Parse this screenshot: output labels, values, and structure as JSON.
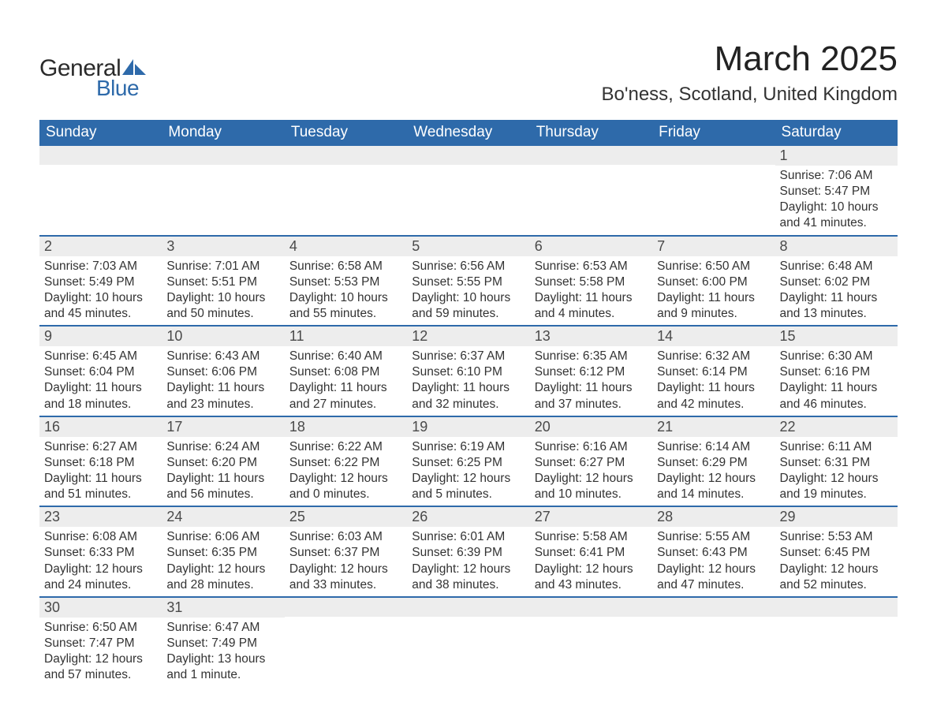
{
  "brand": {
    "word1": "General",
    "word2": "Blue",
    "accent_color": "#2e6aaa"
  },
  "title": "March 2025",
  "location": "Bo'ness, Scotland, United Kingdom",
  "day_headers": [
    "Sunday",
    "Monday",
    "Tuesday",
    "Wednesday",
    "Thursday",
    "Friday",
    "Saturday"
  ],
  "colors": {
    "header_bg": "#2e6aaa",
    "header_text": "#ffffff",
    "daynum_bg": "#ededed",
    "text": "#333333",
    "rule": "#2e6aaa"
  },
  "fonts": {
    "title_size_pt": 33,
    "location_size_pt": 18,
    "dow_size_pt": 14,
    "daynum_size_pt": 14,
    "body_size_pt": 12
  },
  "weeks": [
    [
      {
        "n": "",
        "sunrise": "",
        "sunset": "",
        "daylight": ""
      },
      {
        "n": "",
        "sunrise": "",
        "sunset": "",
        "daylight": ""
      },
      {
        "n": "",
        "sunrise": "",
        "sunset": "",
        "daylight": ""
      },
      {
        "n": "",
        "sunrise": "",
        "sunset": "",
        "daylight": ""
      },
      {
        "n": "",
        "sunrise": "",
        "sunset": "",
        "daylight": ""
      },
      {
        "n": "",
        "sunrise": "",
        "sunset": "",
        "daylight": ""
      },
      {
        "n": "1",
        "sunrise": "Sunrise: 7:06 AM",
        "sunset": "Sunset: 5:47 PM",
        "daylight": "Daylight: 10 hours and 41 minutes."
      }
    ],
    [
      {
        "n": "2",
        "sunrise": "Sunrise: 7:03 AM",
        "sunset": "Sunset: 5:49 PM",
        "daylight": "Daylight: 10 hours and 45 minutes."
      },
      {
        "n": "3",
        "sunrise": "Sunrise: 7:01 AM",
        "sunset": "Sunset: 5:51 PM",
        "daylight": "Daylight: 10 hours and 50 minutes."
      },
      {
        "n": "4",
        "sunrise": "Sunrise: 6:58 AM",
        "sunset": "Sunset: 5:53 PM",
        "daylight": "Daylight: 10 hours and 55 minutes."
      },
      {
        "n": "5",
        "sunrise": "Sunrise: 6:56 AM",
        "sunset": "Sunset: 5:55 PM",
        "daylight": "Daylight: 10 hours and 59 minutes."
      },
      {
        "n": "6",
        "sunrise": "Sunrise: 6:53 AM",
        "sunset": "Sunset: 5:58 PM",
        "daylight": "Daylight: 11 hours and 4 minutes."
      },
      {
        "n": "7",
        "sunrise": "Sunrise: 6:50 AM",
        "sunset": "Sunset: 6:00 PM",
        "daylight": "Daylight: 11 hours and 9 minutes."
      },
      {
        "n": "8",
        "sunrise": "Sunrise: 6:48 AM",
        "sunset": "Sunset: 6:02 PM",
        "daylight": "Daylight: 11 hours and 13 minutes."
      }
    ],
    [
      {
        "n": "9",
        "sunrise": "Sunrise: 6:45 AM",
        "sunset": "Sunset: 6:04 PM",
        "daylight": "Daylight: 11 hours and 18 minutes."
      },
      {
        "n": "10",
        "sunrise": "Sunrise: 6:43 AM",
        "sunset": "Sunset: 6:06 PM",
        "daylight": "Daylight: 11 hours and 23 minutes."
      },
      {
        "n": "11",
        "sunrise": "Sunrise: 6:40 AM",
        "sunset": "Sunset: 6:08 PM",
        "daylight": "Daylight: 11 hours and 27 minutes."
      },
      {
        "n": "12",
        "sunrise": "Sunrise: 6:37 AM",
        "sunset": "Sunset: 6:10 PM",
        "daylight": "Daylight: 11 hours and 32 minutes."
      },
      {
        "n": "13",
        "sunrise": "Sunrise: 6:35 AM",
        "sunset": "Sunset: 6:12 PM",
        "daylight": "Daylight: 11 hours and 37 minutes."
      },
      {
        "n": "14",
        "sunrise": "Sunrise: 6:32 AM",
        "sunset": "Sunset: 6:14 PM",
        "daylight": "Daylight: 11 hours and 42 minutes."
      },
      {
        "n": "15",
        "sunrise": "Sunrise: 6:30 AM",
        "sunset": "Sunset: 6:16 PM",
        "daylight": "Daylight: 11 hours and 46 minutes."
      }
    ],
    [
      {
        "n": "16",
        "sunrise": "Sunrise: 6:27 AM",
        "sunset": "Sunset: 6:18 PM",
        "daylight": "Daylight: 11 hours and 51 minutes."
      },
      {
        "n": "17",
        "sunrise": "Sunrise: 6:24 AM",
        "sunset": "Sunset: 6:20 PM",
        "daylight": "Daylight: 11 hours and 56 minutes."
      },
      {
        "n": "18",
        "sunrise": "Sunrise: 6:22 AM",
        "sunset": "Sunset: 6:22 PM",
        "daylight": "Daylight: 12 hours and 0 minutes."
      },
      {
        "n": "19",
        "sunrise": "Sunrise: 6:19 AM",
        "sunset": "Sunset: 6:25 PM",
        "daylight": "Daylight: 12 hours and 5 minutes."
      },
      {
        "n": "20",
        "sunrise": "Sunrise: 6:16 AM",
        "sunset": "Sunset: 6:27 PM",
        "daylight": "Daylight: 12 hours and 10 minutes."
      },
      {
        "n": "21",
        "sunrise": "Sunrise: 6:14 AM",
        "sunset": "Sunset: 6:29 PM",
        "daylight": "Daylight: 12 hours and 14 minutes."
      },
      {
        "n": "22",
        "sunrise": "Sunrise: 6:11 AM",
        "sunset": "Sunset: 6:31 PM",
        "daylight": "Daylight: 12 hours and 19 minutes."
      }
    ],
    [
      {
        "n": "23",
        "sunrise": "Sunrise: 6:08 AM",
        "sunset": "Sunset: 6:33 PM",
        "daylight": "Daylight: 12 hours and 24 minutes."
      },
      {
        "n": "24",
        "sunrise": "Sunrise: 6:06 AM",
        "sunset": "Sunset: 6:35 PM",
        "daylight": "Daylight: 12 hours and 28 minutes."
      },
      {
        "n": "25",
        "sunrise": "Sunrise: 6:03 AM",
        "sunset": "Sunset: 6:37 PM",
        "daylight": "Daylight: 12 hours and 33 minutes."
      },
      {
        "n": "26",
        "sunrise": "Sunrise: 6:01 AM",
        "sunset": "Sunset: 6:39 PM",
        "daylight": "Daylight: 12 hours and 38 minutes."
      },
      {
        "n": "27",
        "sunrise": "Sunrise: 5:58 AM",
        "sunset": "Sunset: 6:41 PM",
        "daylight": "Daylight: 12 hours and 43 minutes."
      },
      {
        "n": "28",
        "sunrise": "Sunrise: 5:55 AM",
        "sunset": "Sunset: 6:43 PM",
        "daylight": "Daylight: 12 hours and 47 minutes."
      },
      {
        "n": "29",
        "sunrise": "Sunrise: 5:53 AM",
        "sunset": "Sunset: 6:45 PM",
        "daylight": "Daylight: 12 hours and 52 minutes."
      }
    ],
    [
      {
        "n": "30",
        "sunrise": "Sunrise: 6:50 AM",
        "sunset": "Sunset: 7:47 PM",
        "daylight": "Daylight: 12 hours and 57 minutes."
      },
      {
        "n": "31",
        "sunrise": "Sunrise: 6:47 AM",
        "sunset": "Sunset: 7:49 PM",
        "daylight": "Daylight: 13 hours and 1 minute."
      },
      {
        "n": "",
        "sunrise": "",
        "sunset": "",
        "daylight": ""
      },
      {
        "n": "",
        "sunrise": "",
        "sunset": "",
        "daylight": ""
      },
      {
        "n": "",
        "sunrise": "",
        "sunset": "",
        "daylight": ""
      },
      {
        "n": "",
        "sunrise": "",
        "sunset": "",
        "daylight": ""
      },
      {
        "n": "",
        "sunrise": "",
        "sunset": "",
        "daylight": ""
      }
    ]
  ]
}
